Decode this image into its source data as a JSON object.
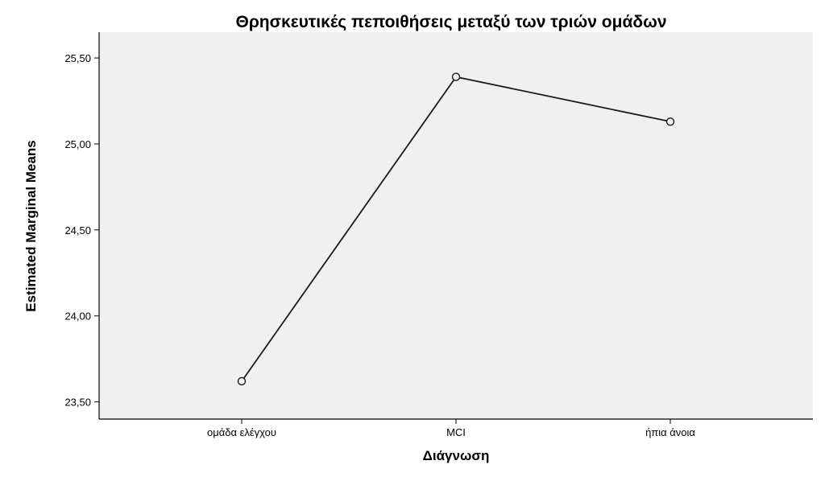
{
  "chart_data": {
    "type": "line",
    "title": "Θρησκευτικές πεποιθήσεις μεταξύ των τριών ομάδων",
    "xlabel": "Διάγνωση",
    "ylabel": "Estimated Marginal Means",
    "categories": [
      "ομάδα ελέγχου",
      "MCI",
      "ήπια άνοια"
    ],
    "values": [
      23.62,
      25.39,
      25.13
    ],
    "ylim": [
      23.4,
      25.65
    ],
    "yticks": [
      23.5,
      24.0,
      24.5,
      25.0,
      25.5
    ],
    "ytick_labels": [
      "23,50",
      "24,00",
      "24,50",
      "25,00",
      "25,50"
    ],
    "grid": false,
    "marker": "open-circle",
    "colors": {
      "plot_background": "#f0f0f0",
      "line": "#1a1a1a",
      "axis": "#000000"
    }
  }
}
